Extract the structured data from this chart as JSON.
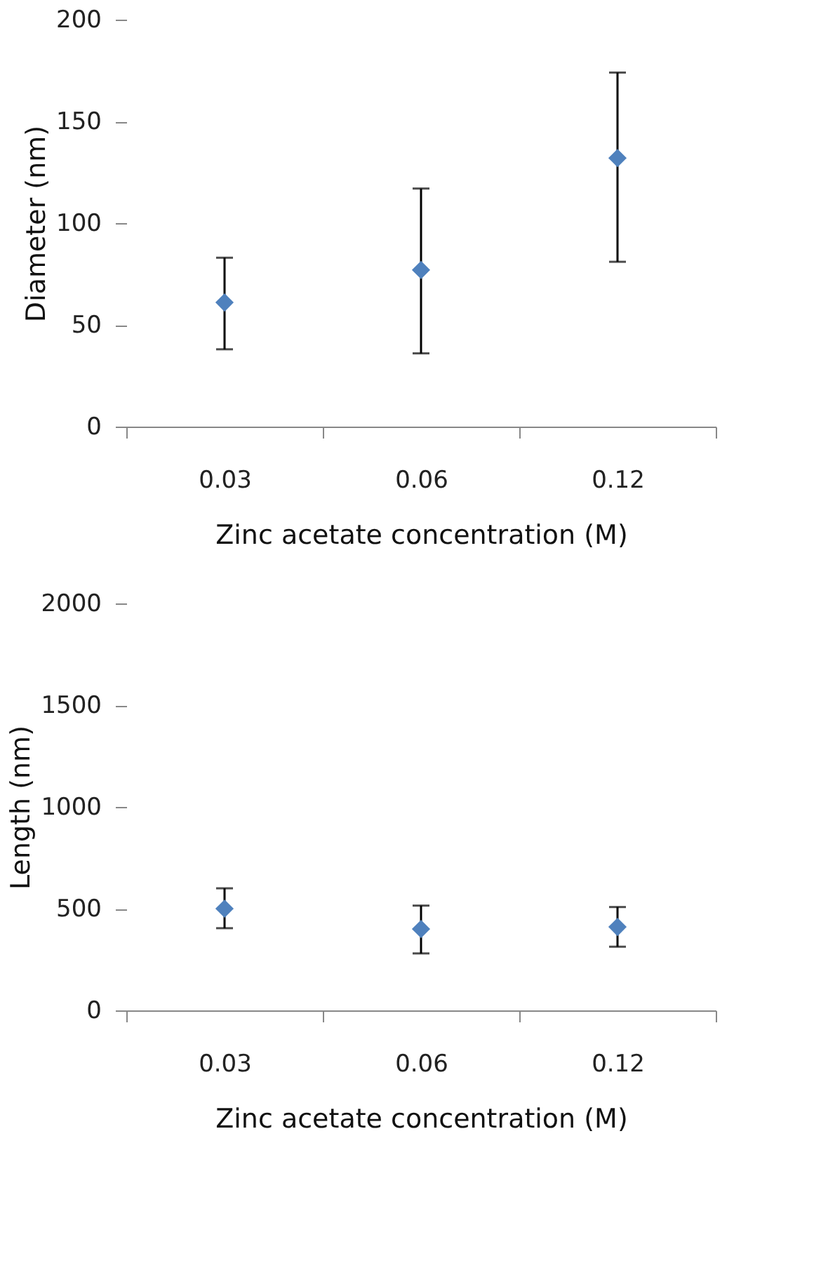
{
  "chart_data": [
    {
      "type": "scatter",
      "xlabel": "Zinc acetate concentration (M)",
      "ylabel": "Diameter (nm)",
      "categories": [
        "0.03",
        "0.06",
        "0.12"
      ],
      "series": [
        {
          "color": "#4f81bd",
          "values": [
            61,
            77,
            132
          ],
          "errors": [
            [
              38,
              83
            ],
            [
              36,
              117
            ],
            [
              81,
              174
            ]
          ]
        }
      ],
      "ylim": [
        0,
        200
      ],
      "yticks": [
        0,
        50,
        100,
        150,
        200
      ],
      "marker": "diamond",
      "grid": false
    },
    {
      "type": "scatter",
      "xlabel": "Zinc acetate concentration (M)",
      "ylabel": "Length (nm)",
      "categories": [
        "0.03",
        "0.06",
        "0.12"
      ],
      "series": [
        {
          "color": "#4f81bd",
          "values": [
            500,
            400,
            410
          ],
          "errors": [
            [
              404,
              600
            ],
            [
              280,
              515
            ],
            [
              313,
              508
            ]
          ]
        }
      ],
      "ylim": [
        0,
        2000
      ],
      "yticks": [
        0,
        500,
        1000,
        1500,
        2000
      ],
      "marker": "diamond",
      "grid": false
    }
  ]
}
